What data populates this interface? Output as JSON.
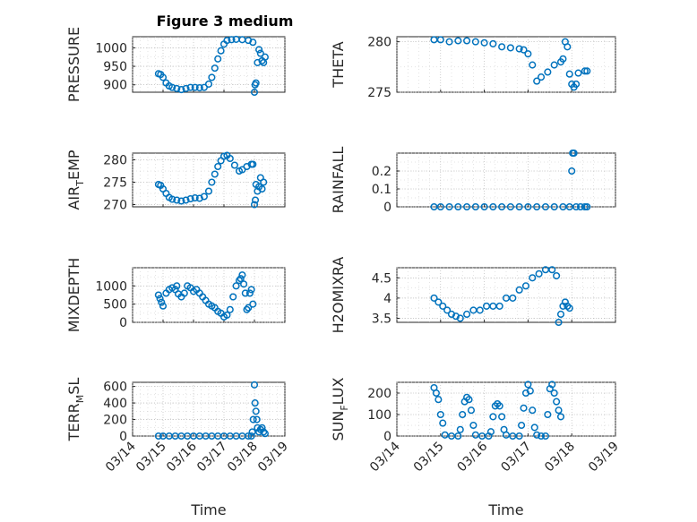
{
  "figure_title": "Figure 3 medium",
  "chart_data": [
    {
      "type": "scatter",
      "ylabel": "PRESSURE",
      "ylim": [
        880,
        1030
      ],
      "yticks": [
        900,
        950,
        1000
      ],
      "title": "Figure 3 medium",
      "color": "#0072BD",
      "points": [
        [
          0.85,
          930
        ],
        [
          0.92,
          928
        ],
        [
          1.0,
          920
        ],
        [
          1.1,
          905
        ],
        [
          1.2,
          897
        ],
        [
          1.3,
          893
        ],
        [
          1.45,
          890
        ],
        [
          1.6,
          887
        ],
        [
          1.75,
          890
        ],
        [
          1.9,
          893
        ],
        [
          2.05,
          893
        ],
        [
          2.2,
          892
        ],
        [
          2.35,
          893
        ],
        [
          2.5,
          902
        ],
        [
          2.6,
          920
        ],
        [
          2.7,
          945
        ],
        [
          2.8,
          970
        ],
        [
          2.9,
          992
        ],
        [
          3.0,
          1010
        ],
        [
          3.1,
          1020
        ],
        [
          3.25,
          1022
        ],
        [
          3.4,
          1023
        ],
        [
          3.6,
          1022
        ],
        [
          3.8,
          1020
        ],
        [
          3.95,
          1015
        ],
        [
          4.0,
          880
        ],
        [
          4.02,
          900
        ],
        [
          4.05,
          905
        ],
        [
          4.1,
          960
        ],
        [
          4.15,
          995
        ],
        [
          4.2,
          985
        ],
        [
          4.25,
          965
        ],
        [
          4.3,
          960
        ],
        [
          4.35,
          975
        ]
      ]
    },
    {
      "type": "scatter",
      "ylabel": "THETA",
      "ylim": [
        275,
        280.5
      ],
      "yticks": [
        275,
        280
      ],
      "color": "#0072BD",
      "points": [
        [
          0.85,
          280.2
        ],
        [
          1.0,
          280.2
        ],
        [
          1.2,
          280.0
        ],
        [
          1.4,
          280.1
        ],
        [
          1.6,
          280.1
        ],
        [
          1.8,
          280.0
        ],
        [
          2.0,
          279.9
        ],
        [
          2.2,
          279.8
        ],
        [
          2.4,
          279.5
        ],
        [
          2.6,
          279.4
        ],
        [
          2.8,
          279.3
        ],
        [
          2.9,
          279.2
        ],
        [
          3.0,
          278.8
        ],
        [
          3.1,
          277.7
        ],
        [
          3.2,
          276.1
        ],
        [
          3.3,
          276.5
        ],
        [
          3.45,
          277.0
        ],
        [
          3.6,
          277.7
        ],
        [
          3.75,
          278.0
        ],
        [
          3.8,
          278.3
        ],
        [
          3.85,
          280.0
        ],
        [
          3.9,
          279.5
        ],
        [
          3.95,
          276.8
        ],
        [
          4.0,
          275.8
        ],
        [
          4.05,
          275.5
        ],
        [
          4.1,
          275.8
        ],
        [
          4.15,
          276.9
        ],
        [
          4.3,
          277.1
        ],
        [
          4.35,
          277.1
        ]
      ]
    },
    {
      "type": "scatter",
      "ylabel": "AIR_TEMP",
      "ylim": [
        269.5,
        281.5
      ],
      "yticks": [
        270,
        275,
        280
      ],
      "color": "#0072BD",
      "points": [
        [
          0.85,
          274.5
        ],
        [
          0.92,
          274.3
        ],
        [
          1.0,
          273.5
        ],
        [
          1.1,
          272.5
        ],
        [
          1.2,
          271.6
        ],
        [
          1.3,
          271.2
        ],
        [
          1.45,
          271.0
        ],
        [
          1.6,
          270.8
        ],
        [
          1.75,
          271.0
        ],
        [
          1.9,
          271.3
        ],
        [
          2.05,
          271.5
        ],
        [
          2.2,
          271.4
        ],
        [
          2.35,
          271.8
        ],
        [
          2.5,
          273.0
        ],
        [
          2.6,
          275.0
        ],
        [
          2.7,
          276.8
        ],
        [
          2.8,
          278.5
        ],
        [
          2.9,
          279.8
        ],
        [
          3.0,
          280.8
        ],
        [
          3.1,
          281.0
        ],
        [
          3.2,
          280.3
        ],
        [
          3.35,
          278.8
        ],
        [
          3.5,
          277.5
        ],
        [
          3.6,
          277.8
        ],
        [
          3.75,
          278.5
        ],
        [
          3.9,
          279.0
        ],
        [
          3.95,
          279.0
        ],
        [
          4.0,
          270.0
        ],
        [
          4.03,
          271.0
        ],
        [
          4.05,
          274.5
        ],
        [
          4.1,
          273.0
        ],
        [
          4.15,
          274.0
        ],
        [
          4.2,
          276.0
        ],
        [
          4.25,
          273.5
        ],
        [
          4.3,
          275.0
        ]
      ]
    },
    {
      "type": "scatter",
      "ylabel": "RAINFALL",
      "ylim": [
        0,
        0.3
      ],
      "yticks": [
        0,
        0.1,
        0.2
      ],
      "color": "#0072BD",
      "points": [
        [
          0.85,
          0
        ],
        [
          1.0,
          0
        ],
        [
          1.2,
          0
        ],
        [
          1.4,
          0
        ],
        [
          1.6,
          0
        ],
        [
          1.8,
          0
        ],
        [
          2.0,
          0
        ],
        [
          2.2,
          0
        ],
        [
          2.4,
          0
        ],
        [
          2.6,
          0
        ],
        [
          2.8,
          0
        ],
        [
          3.0,
          0
        ],
        [
          3.2,
          0
        ],
        [
          3.4,
          0
        ],
        [
          3.6,
          0
        ],
        [
          3.8,
          0
        ],
        [
          3.95,
          0
        ],
        [
          4.0,
          0.2
        ],
        [
          4.02,
          0.3
        ],
        [
          4.05,
          0.3
        ],
        [
          4.1,
          0
        ],
        [
          4.2,
          0
        ],
        [
          4.3,
          0
        ],
        [
          4.35,
          0
        ]
      ]
    },
    {
      "type": "scatter",
      "ylabel": "MIXDEPTH",
      "ylim": [
        0,
        1500
      ],
      "yticks": [
        0,
        500,
        1000
      ],
      "color": "#0072BD",
      "points": [
        [
          0.85,
          750
        ],
        [
          0.9,
          650
        ],
        [
          0.95,
          550
        ],
        [
          1.0,
          450
        ],
        [
          1.1,
          800
        ],
        [
          1.2,
          900
        ],
        [
          1.3,
          950
        ],
        [
          1.4,
          900
        ],
        [
          1.45,
          1000
        ],
        [
          1.5,
          780
        ],
        [
          1.6,
          700
        ],
        [
          1.7,
          800
        ],
        [
          1.8,
          1000
        ],
        [
          1.9,
          950
        ],
        [
          2.0,
          850
        ],
        [
          2.1,
          900
        ],
        [
          2.2,
          800
        ],
        [
          2.3,
          700
        ],
        [
          2.4,
          600
        ],
        [
          2.5,
          500
        ],
        [
          2.6,
          450
        ],
        [
          2.7,
          400
        ],
        [
          2.8,
          300
        ],
        [
          2.9,
          250
        ],
        [
          3.0,
          150
        ],
        [
          3.1,
          200
        ],
        [
          3.2,
          350
        ],
        [
          3.3,
          700
        ],
        [
          3.4,
          1000
        ],
        [
          3.5,
          1150
        ],
        [
          3.55,
          1200
        ],
        [
          3.6,
          1300
        ],
        [
          3.65,
          1050
        ],
        [
          3.7,
          800
        ],
        [
          3.75,
          350
        ],
        [
          3.8,
          400
        ],
        [
          3.85,
          800
        ],
        [
          3.9,
          900
        ],
        [
          3.95,
          500
        ]
      ]
    },
    {
      "type": "scatter",
      "ylabel": "H2OMIXRA",
      "ylim": [
        3.4,
        4.75
      ],
      "yticks": [
        3.5,
        4,
        4.5
      ],
      "color": "#0072BD",
      "points": [
        [
          0.85,
          4.0
        ],
        [
          0.95,
          3.9
        ],
        [
          1.05,
          3.8
        ],
        [
          1.15,
          3.7
        ],
        [
          1.25,
          3.6
        ],
        [
          1.35,
          3.55
        ],
        [
          1.45,
          3.5
        ],
        [
          1.6,
          3.6
        ],
        [
          1.75,
          3.7
        ],
        [
          1.9,
          3.7
        ],
        [
          2.05,
          3.8
        ],
        [
          2.2,
          3.8
        ],
        [
          2.35,
          3.8
        ],
        [
          2.5,
          4.0
        ],
        [
          2.65,
          4.0
        ],
        [
          2.8,
          4.2
        ],
        [
          2.95,
          4.3
        ],
        [
          3.1,
          4.5
        ],
        [
          3.25,
          4.6
        ],
        [
          3.4,
          4.7
        ],
        [
          3.55,
          4.7
        ],
        [
          3.65,
          4.55
        ],
        [
          3.7,
          3.4
        ],
        [
          3.75,
          3.6
        ],
        [
          3.8,
          3.8
        ],
        [
          3.85,
          3.9
        ],
        [
          3.9,
          3.8
        ],
        [
          3.95,
          3.75
        ]
      ]
    },
    {
      "type": "scatter",
      "ylabel": "TERR_MSL",
      "ylim": [
        0,
        650
      ],
      "yticks": [
        0,
        200,
        400,
        600
      ],
      "color": "#0072BD",
      "points": [
        [
          0.85,
          0
        ],
        [
          1.0,
          0
        ],
        [
          1.2,
          0
        ],
        [
          1.4,
          0
        ],
        [
          1.6,
          0
        ],
        [
          1.8,
          0
        ],
        [
          2.0,
          0
        ],
        [
          2.2,
          0
        ],
        [
          2.4,
          0
        ],
        [
          2.6,
          0
        ],
        [
          2.8,
          0
        ],
        [
          3.0,
          0
        ],
        [
          3.2,
          0
        ],
        [
          3.4,
          0
        ],
        [
          3.6,
          0
        ],
        [
          3.8,
          0
        ],
        [
          3.9,
          0
        ],
        [
          3.93,
          50
        ],
        [
          3.96,
          200
        ],
        [
          4.0,
          620
        ],
        [
          4.02,
          400
        ],
        [
          4.05,
          300
        ],
        [
          4.08,
          200
        ],
        [
          4.1,
          100
        ],
        [
          4.15,
          50
        ],
        [
          4.2,
          80
        ],
        [
          4.25,
          100
        ],
        [
          4.3,
          50
        ],
        [
          4.35,
          30
        ]
      ]
    },
    {
      "type": "scatter",
      "ylabel": "SUN_FLUX",
      "ylim": [
        0,
        250
      ],
      "yticks": [
        0,
        100,
        200
      ],
      "color": "#0072BD",
      "points": [
        [
          0.85,
          225
        ],
        [
          0.9,
          200
        ],
        [
          0.95,
          170
        ],
        [
          1.0,
          100
        ],
        [
          1.05,
          60
        ],
        [
          1.1,
          5
        ],
        [
          1.25,
          0
        ],
        [
          1.4,
          0
        ],
        [
          1.45,
          30
        ],
        [
          1.5,
          100
        ],
        [
          1.55,
          160
        ],
        [
          1.6,
          180
        ],
        [
          1.65,
          170
        ],
        [
          1.7,
          120
        ],
        [
          1.75,
          50
        ],
        [
          1.8,
          5
        ],
        [
          1.95,
          0
        ],
        [
          2.1,
          0
        ],
        [
          2.15,
          20
        ],
        [
          2.2,
          90
        ],
        [
          2.25,
          140
        ],
        [
          2.3,
          150
        ],
        [
          2.35,
          140
        ],
        [
          2.4,
          90
        ],
        [
          2.45,
          30
        ],
        [
          2.5,
          5
        ],
        [
          2.65,
          0
        ],
        [
          2.8,
          0
        ],
        [
          2.85,
          50
        ],
        [
          2.9,
          130
        ],
        [
          2.95,
          200
        ],
        [
          3.0,
          240
        ],
        [
          3.05,
          210
        ],
        [
          3.1,
          120
        ],
        [
          3.15,
          40
        ],
        [
          3.2,
          5
        ],
        [
          3.3,
          0
        ],
        [
          3.4,
          0
        ],
        [
          3.45,
          100
        ],
        [
          3.5,
          220
        ],
        [
          3.55,
          240
        ],
        [
          3.6,
          200
        ],
        [
          3.65,
          160
        ],
        [
          3.7,
          120
        ],
        [
          3.75,
          90
        ]
      ]
    }
  ],
  "xaxis": {
    "label": "Time",
    "xlim": [
      0,
      5
    ],
    "ticks": [
      0,
      1,
      2,
      3,
      4,
      5
    ],
    "ticklabels": [
      "03/14",
      "03/15",
      "03/16",
      "03/17",
      "03/18",
      "03/19"
    ]
  }
}
